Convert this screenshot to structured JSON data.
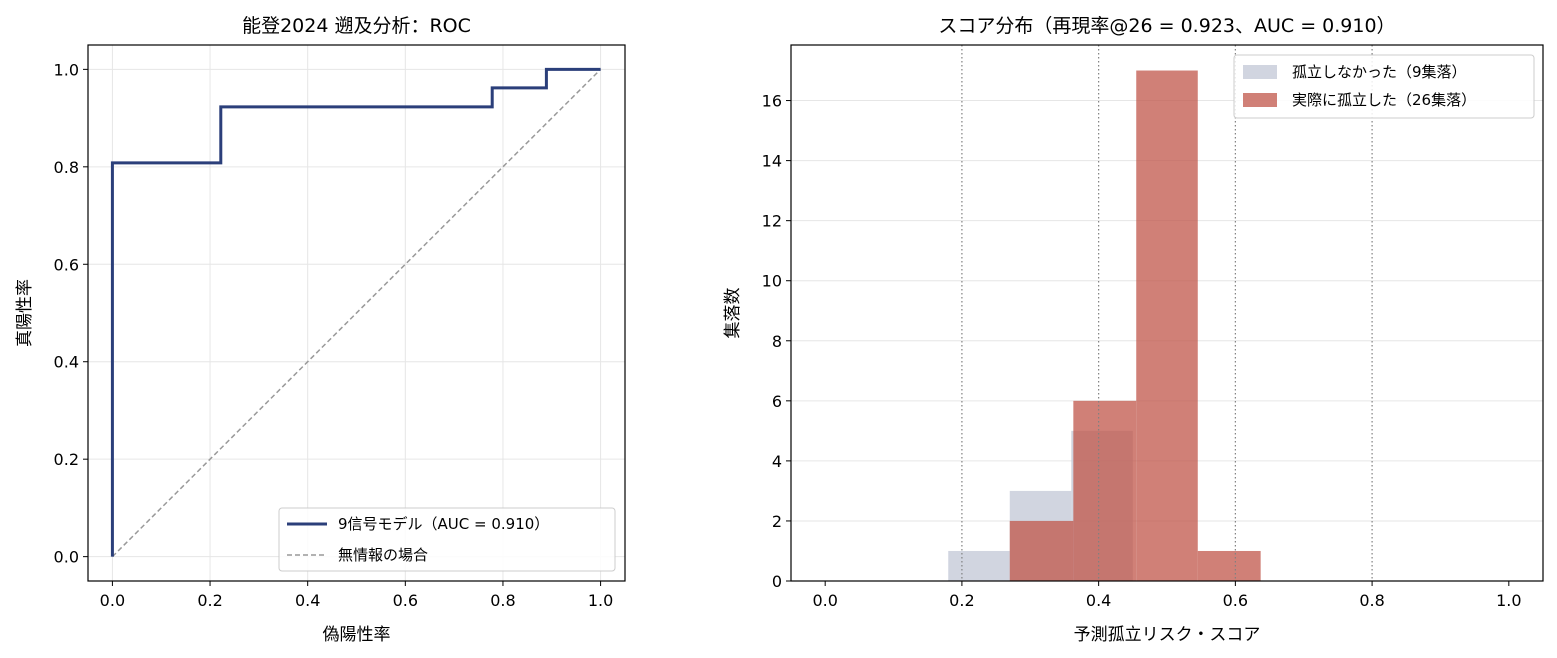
{
  "chart_data": [
    {
      "type": "line",
      "title": "能登2024 遡及分析：ROC",
      "xlabel": "偽陽性率",
      "ylabel": "真陽性率",
      "xlim": [
        -0.05,
        1.05
      ],
      "ylim": [
        -0.05,
        1.05
      ],
      "x_ticks": [
        "0.0",
        "0.2",
        "0.4",
        "0.6",
        "0.8",
        "1.0"
      ],
      "y_ticks": [
        "0.0",
        "0.2",
        "0.4",
        "0.6",
        "0.8",
        "1.0"
      ],
      "grid": true,
      "legend_position": "lower-right",
      "series": [
        {
          "name": "9信号モデル（AUC = 0.910）",
          "color": "#2b3f7a",
          "style": "solid",
          "x": [
            0.0,
            0.0,
            0.222,
            0.222,
            0.778,
            0.778,
            0.889,
            0.889,
            1.0
          ],
          "y": [
            0.0,
            0.808,
            0.808,
            0.923,
            0.923,
            0.962,
            0.962,
            1.0,
            1.0
          ]
        },
        {
          "name": "無情報の場合",
          "color": "#999999",
          "style": "dashed",
          "x": [
            0.0,
            1.0
          ],
          "y": [
            0.0,
            1.0
          ]
        }
      ]
    },
    {
      "type": "bar",
      "title": "スコア分布（再現率@26 = 0.923、AUC = 0.910）",
      "xlabel": "予測孤立リスク・スコア",
      "ylabel": "集落数",
      "xlim": [
        -0.05,
        1.05
      ],
      "ylim": [
        0,
        17.85
      ],
      "x_ticks": [
        "0.0",
        "0.2",
        "0.4",
        "0.6",
        "0.8",
        "1.0"
      ],
      "y_ticks": [
        "0",
        "2",
        "4",
        "6",
        "8",
        "10",
        "12",
        "14",
        "16"
      ],
      "grid": true,
      "vlines": [
        0.2,
        0.4,
        0.6,
        0.8
      ],
      "legend_position": "top-right",
      "series": [
        {
          "name": "孤立しなかった（9集落）",
          "color": "#c5cad8",
          "bins": [
            {
              "x0": 0.18,
              "x1": 0.27,
              "count": 1
            },
            {
              "x0": 0.27,
              "x1": 0.36,
              "count": 3
            },
            {
              "x0": 0.36,
              "x1": 0.45,
              "count": 5
            }
          ]
        },
        {
          "name": "実際に孤立した（26集落）",
          "color": "#c0554a",
          "bins": [
            {
              "x0": 0.27,
              "x1": 0.363,
              "count": 2
            },
            {
              "x0": 0.363,
              "x1": 0.455,
              "count": 6
            },
            {
              "x0": 0.455,
              "x1": 0.545,
              "count": 17
            },
            {
              "x0": 0.545,
              "x1": 0.637,
              "count": 1
            }
          ]
        }
      ]
    }
  ]
}
